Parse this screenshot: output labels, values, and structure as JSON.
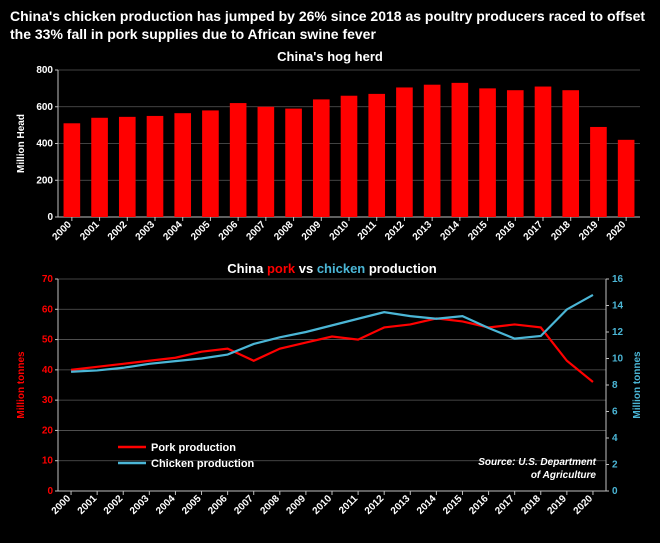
{
  "headline": "China's chicken production has jumped by 26% since 2018 as poultry producers raced to offset the 33% fall in pork supplies due to African swine fever",
  "chart1": {
    "type": "bar",
    "title": "China's hog herd",
    "ylabel": "Million Head",
    "categories": [
      "2000",
      "2001",
      "2002",
      "2003",
      "2004",
      "2005",
      "2006",
      "2007",
      "2008",
      "2009",
      "2010",
      "2011",
      "2012",
      "2013",
      "2014",
      "2015",
      "2016",
      "2017",
      "2018",
      "2019",
      "2020"
    ],
    "values": [
      510,
      540,
      545,
      550,
      565,
      580,
      620,
      600,
      590,
      640,
      660,
      670,
      705,
      720,
      730,
      700,
      690,
      710,
      690,
      490,
      420
    ],
    "ylim": [
      0,
      800
    ],
    "ytick_step": 200,
    "bar_color": "#ff0000",
    "grid_color": "#595959",
    "axis_color": "#bfbfbf",
    "background_color": "#000000",
    "label_fontsize": 10,
    "title_fontsize": 13,
    "bar_width": 0.6
  },
  "chart2": {
    "type": "line",
    "title_parts": {
      "prefix": "China ",
      "pork": "pork",
      "mid": " vs ",
      "chicken": "chicken",
      "suffix": " production"
    },
    "ylabel_left": "Million tonnes",
    "ylabel_right": "Million tonnes",
    "categories": [
      "2000",
      "2001",
      "2002",
      "2003",
      "2004",
      "2005",
      "2006",
      "2007",
      "2008",
      "2009",
      "2010",
      "2011",
      "2012",
      "2013",
      "2014",
      "2015",
      "2016",
      "2017",
      "2018",
      "2019",
      "2020"
    ],
    "series": [
      {
        "name": "Pork production",
        "color": "#ff0000",
        "axis": "left",
        "values": [
          40,
          41,
          42,
          43,
          44,
          46,
          47,
          43,
          47,
          49,
          51,
          50,
          54,
          55,
          57,
          56,
          54,
          55,
          54,
          43,
          36
        ]
      },
      {
        "name": "Chicken production",
        "color": "#4bb6d6",
        "axis": "right",
        "values": [
          9.0,
          9.1,
          9.3,
          9.6,
          9.8,
          10.0,
          10.3,
          11.1,
          11.6,
          12.0,
          12.5,
          13.0,
          13.5,
          13.2,
          13.0,
          13.2,
          12.3,
          11.5,
          11.7,
          13.7,
          14.8
        ]
      }
    ],
    "ylim_left": [
      0,
      70
    ],
    "ytick_step_left": 10,
    "ylim_right": [
      0,
      16
    ],
    "ytick_step_right": 2,
    "grid_color": "#595959",
    "axis_color": "#bfbfbf",
    "background_color": "#000000",
    "line_width": 2.2,
    "source": "Source: U.S. Department of Agriculture",
    "legend_items": [
      {
        "label": "Pork production",
        "color": "#ff0000"
      },
      {
        "label": "Chicken production",
        "color": "#4bb6d6"
      }
    ]
  }
}
